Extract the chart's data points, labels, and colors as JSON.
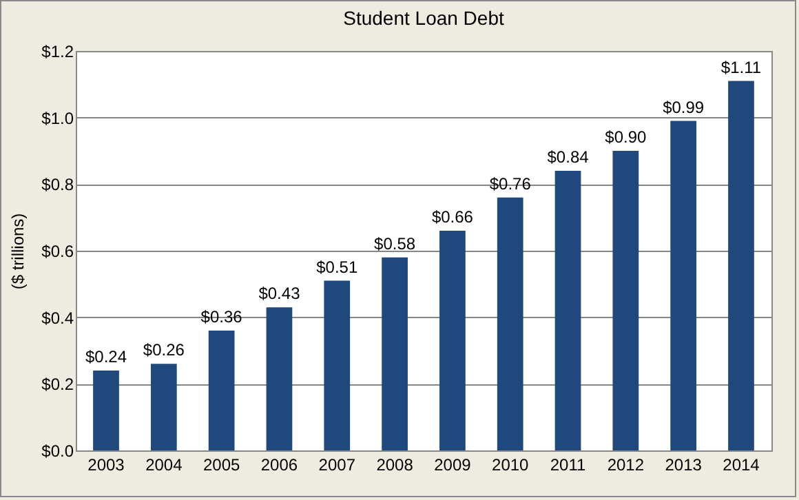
{
  "chart_data": {
    "type": "bar",
    "title": "Student Loan Debt",
    "ylabel": "($ trillions)",
    "categories": [
      "2003",
      "2004",
      "2005",
      "2006",
      "2007",
      "2008",
      "2009",
      "2010",
      "2011",
      "2012",
      "2013",
      "2014"
    ],
    "values": [
      0.24,
      0.26,
      0.36,
      0.43,
      0.51,
      0.58,
      0.66,
      0.76,
      0.84,
      0.9,
      0.99,
      1.11
    ],
    "value_labels": [
      "$0.24",
      "$0.26",
      "$0.36",
      "$0.43",
      "$0.51",
      "$0.58",
      "$0.66",
      "$0.76",
      "$0.84",
      "$0.90",
      "$0.99",
      "$1.11"
    ],
    "color": "#1f497d",
    "ylim": [
      0,
      1.2
    ],
    "yticks": [
      {
        "value": 0,
        "label": "$0.0"
      },
      {
        "value": 0.2,
        "label": "$0.2"
      },
      {
        "value": 0.4,
        "label": "$0.4"
      },
      {
        "value": 0.6,
        "label": "$0.6"
      },
      {
        "value": 0.8,
        "label": "$0.8"
      },
      {
        "value": 1.0,
        "label": "$1.0"
      },
      {
        "value": 1.2,
        "label": "$1.2"
      }
    ],
    "grid": "y"
  }
}
